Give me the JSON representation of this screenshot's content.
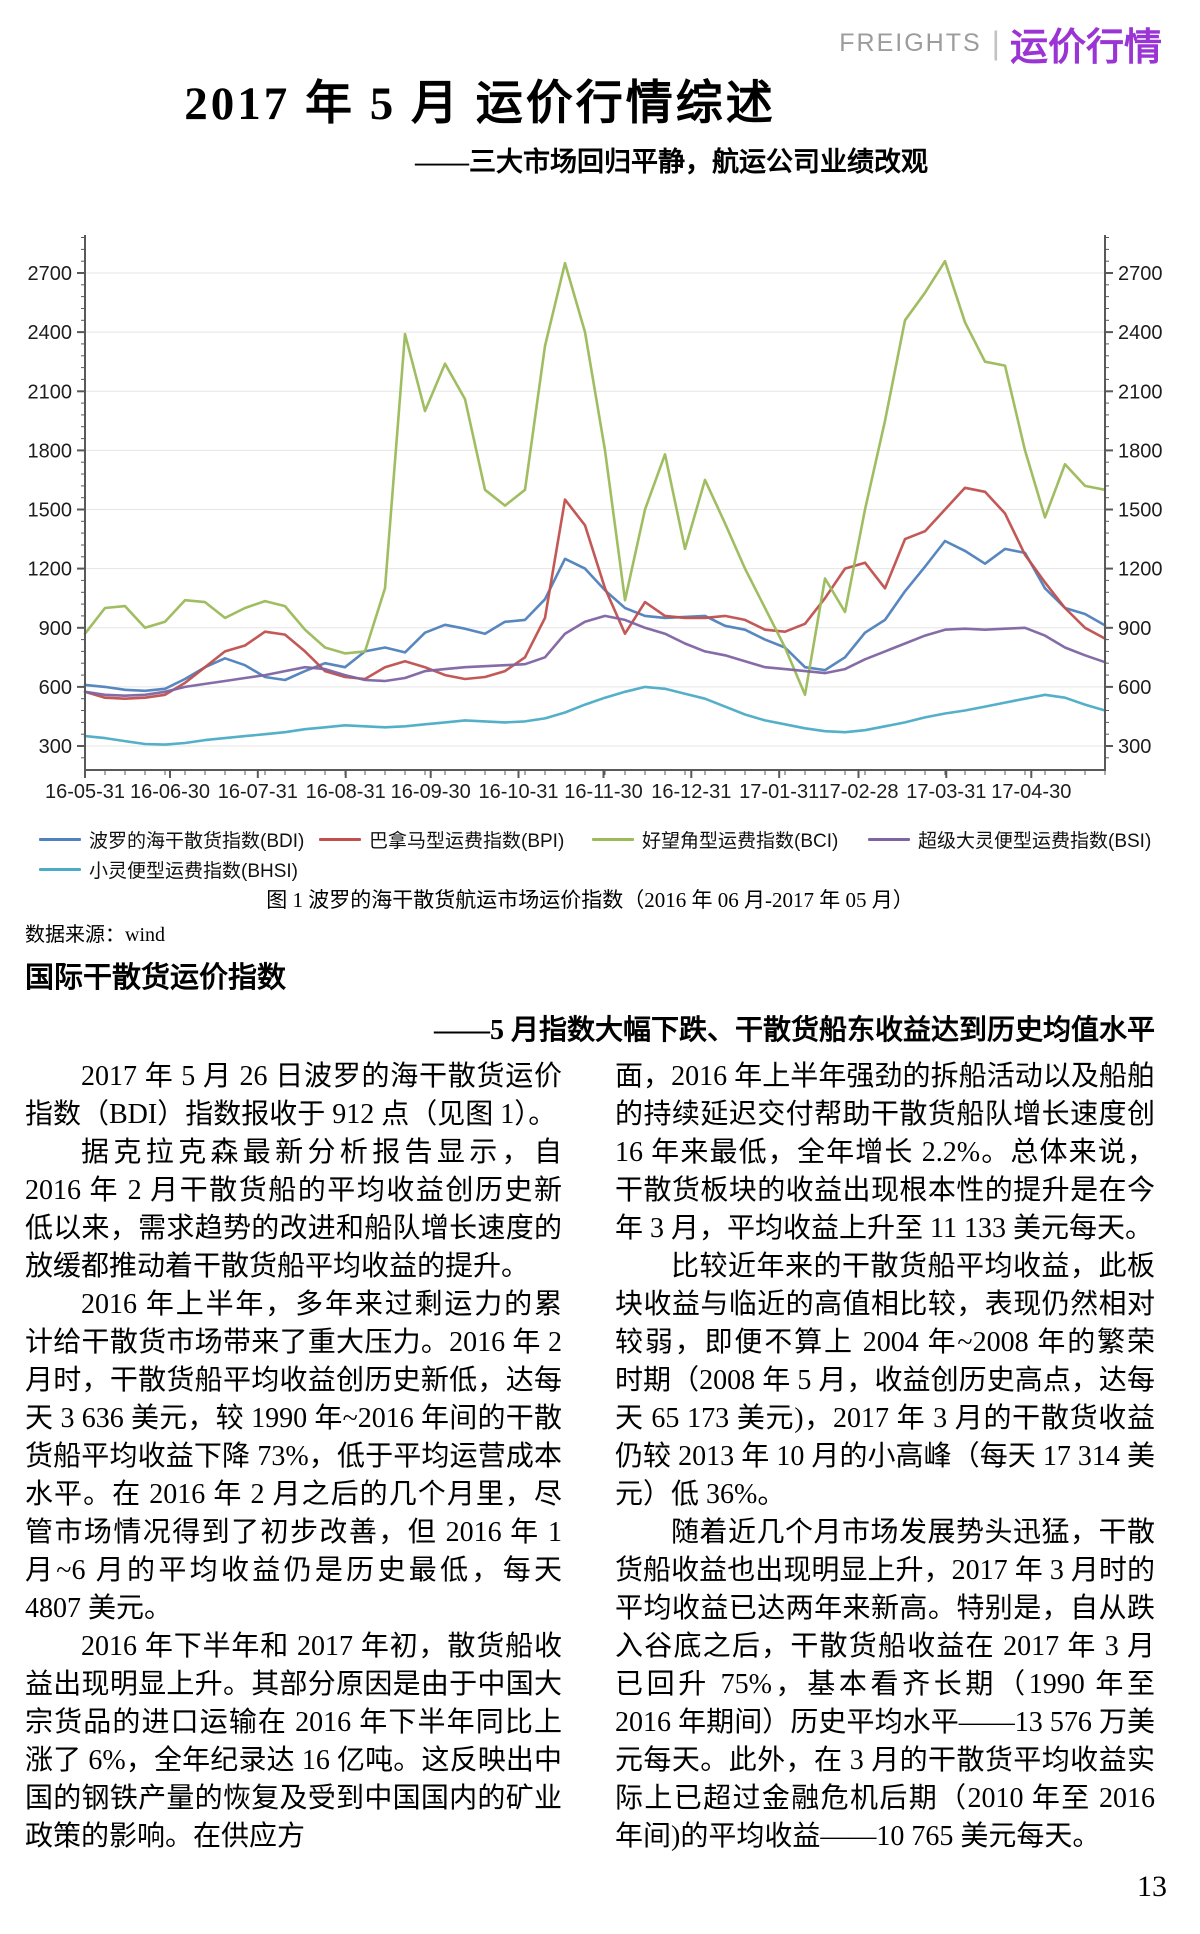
{
  "header": {
    "english": "FREIGHTS",
    "separator": "|",
    "chinese": "运价行情",
    "accent_color": "#9a34d4",
    "muted_color": "#9c9c9c"
  },
  "title": "2017 年 5 月 运价行情综述",
  "subtitle": "——三大市场回归平静，航运公司业绩改观",
  "chart_data": {
    "type": "line",
    "title": "图 1 波罗的海干散货航运市场运价指数（2016 年 06 月-2017 年 05 月）",
    "xlabel": "",
    "ylabel": "",
    "grid": true,
    "legend_position": "bottom",
    "ylim": [
      180,
      2890
    ],
    "y_ticks": [
      300,
      600,
      900,
      1200,
      1500,
      1800,
      2100,
      2400,
      2700
    ],
    "x_tick_labels": [
      "16-05-31",
      "16-06-30",
      "16-07-31",
      "16-08-31",
      "16-09-30",
      "16-10-31",
      "16-11-30",
      "16-12-31",
      "17-01-31",
      "17-02-28",
      "17-03-31",
      "17-04-30"
    ],
    "x_tick_days": [
      0,
      30,
      61,
      92,
      122,
      153,
      183,
      214,
      245,
      273,
      304,
      334
    ],
    "x_total_days": 360,
    "series": [
      {
        "name": "波罗的海干散货指数(BDI)",
        "color": "#4f81bd",
        "values": [
          610,
          600,
          585,
          580,
          590,
          640,
          700,
          745,
          710,
          650,
          635,
          680,
          720,
          700,
          780,
          800,
          775,
          875,
          915,
          895,
          870,
          930,
          940,
          1045,
          1250,
          1200,
          1090,
          1000,
          960,
          950,
          955,
          960,
          910,
          890,
          840,
          800,
          700,
          685,
          750,
          875,
          940,
          1085,
          1210,
          1340,
          1290,
          1225,
          1300,
          1280,
          1100,
          1000,
          970,
          912
        ]
      },
      {
        "name": "巴拿马型运费指数(BPI)",
        "color": "#c0504d",
        "values": [
          575,
          545,
          540,
          545,
          560,
          620,
          700,
          780,
          810,
          880,
          865,
          780,
          680,
          650,
          640,
          700,
          730,
          700,
          660,
          640,
          650,
          680,
          750,
          950,
          1550,
          1420,
          1100,
          870,
          1030,
          960,
          950,
          950,
          960,
          940,
          890,
          880,
          920,
          1050,
          1200,
          1230,
          1100,
          1350,
          1390,
          1500,
          1610,
          1590,
          1480,
          1270,
          1130,
          1000,
          900,
          845
        ]
      },
      {
        "name": "好望角型运费指数(BCI)",
        "color": "#9bbb59",
        "values": [
          870,
          1000,
          1010,
          900,
          930,
          1040,
          1030,
          950,
          1000,
          1035,
          1010,
          890,
          800,
          770,
          780,
          1100,
          2390,
          2000,
          2240,
          2060,
          1600,
          1520,
          1600,
          2330,
          2750,
          2400,
          1800,
          1040,
          1500,
          1780,
          1300,
          1650,
          1430,
          1200,
          1000,
          800,
          560,
          1150,
          980,
          1500,
          1950,
          2460,
          2600,
          2760,
          2450,
          2250,
          2230,
          1800,
          1460,
          1730,
          1620,
          1600
        ]
      },
      {
        "name": "超级大灵便型运费指数(BSI)",
        "color": "#8064a2",
        "values": [
          575,
          560,
          555,
          560,
          575,
          600,
          615,
          630,
          645,
          660,
          680,
          700,
          690,
          660,
          635,
          630,
          645,
          680,
          690,
          700,
          705,
          710,
          715,
          750,
          870,
          930,
          960,
          940,
          900,
          870,
          820,
          780,
          760,
          730,
          700,
          690,
          680,
          670,
          690,
          740,
          780,
          820,
          860,
          890,
          895,
          890,
          895,
          900,
          860,
          800,
          760,
          725
        ]
      },
      {
        "name": "小灵便型运费指数(BHSI)",
        "color": "#4bacc6",
        "values": [
          350,
          340,
          325,
          310,
          307,
          315,
          330,
          340,
          350,
          360,
          370,
          385,
          395,
          405,
          400,
          395,
          400,
          410,
          420,
          430,
          425,
          420,
          425,
          440,
          470,
          510,
          545,
          575,
          600,
          590,
          565,
          540,
          500,
          460,
          430,
          410,
          390,
          375,
          370,
          380,
          400,
          420,
          445,
          465,
          480,
          500,
          520,
          540,
          560,
          545,
          510,
          480
        ]
      }
    ]
  },
  "data_source": "数据来源：wind",
  "section": {
    "heading": "国际干散货运价指数",
    "subheading": "——5 月指数大幅下跌、干散货船东收益达到历史均值水平"
  },
  "body": {
    "left_column": [
      "2017 年 5 月 26 日波罗的海干散货运价指数（BDI）指数报收于 912 点（见图 1）。",
      "据克拉克森最新分析报告显示，自 2016 年 2 月干散货船的平均收益创历史新低以来，需求趋势的改进和船队增长速度的放缓都推动着干散货船平均收益的提升。",
      "2016 年上半年，多年来过剩运力的累计给干散货市场带来了重大压力。2016 年 2 月时，干散货船平均收益创历史新低，达每天 3 636 美元，较 1990 年~2016 年间的干散货船平均收益下降 73%，低于平均运营成本水平。在 2016 年 2 月之后的几个月里，尽管市场情况得到了初步改善，但 2016 年 1 月~6 月的平均收益仍是历史最低，每天 4807 美元。",
      "2016 年下半年和 2017 年初，散货船收益出现明显上升。其部分原因是由于中国大宗货品的进口运输在 2016 年下半年同比上涨了 6%，全年纪录达 16 亿吨。这反映出中国的钢铁产量的恢复及受到中国国内的矿业政策的影响。在供应方"
    ],
    "right_column": [
      "面，2016 年上半年强劲的拆船活动以及船舶的持续延迟交付帮助干散货船队增长速度创 16 年来最低，全年增长 2.2%。总体来说，干散货板块的收益出现根本性的提升是在今年 3 月，平均收益上升至 11 133 美元每天。",
      "比较近年来的干散货船平均收益，此板块收益与临近的高值相比较，表现仍然相对较弱，即便不算上 2004 年~2008 年的繁荣时期（2008 年 5 月，收益创历史高点，达每天 65 173 美元)，2017 年 3 月的干散货收益仍较 2013 年 10 月的小高峰（每天 17 314 美元）低 36%。",
      "随着近几个月市场发展势头迅猛，干散货船收益也出现明显上升，2017 年 3 月时的平均收益已达两年来新高。特别是，自从跌入谷底之后，干散货船收益在 2017 年 3 月已回升 75%，基本看齐长期（1990 年至 2016 年期间）历史平均水平——13 576 万美元每天。此外，在 3 月的干散货平均收益实际上已超过金融危机后期（2010 年至 2016 年间)的平均收益——10 765 美元每天。"
    ]
  },
  "page_number": "13"
}
